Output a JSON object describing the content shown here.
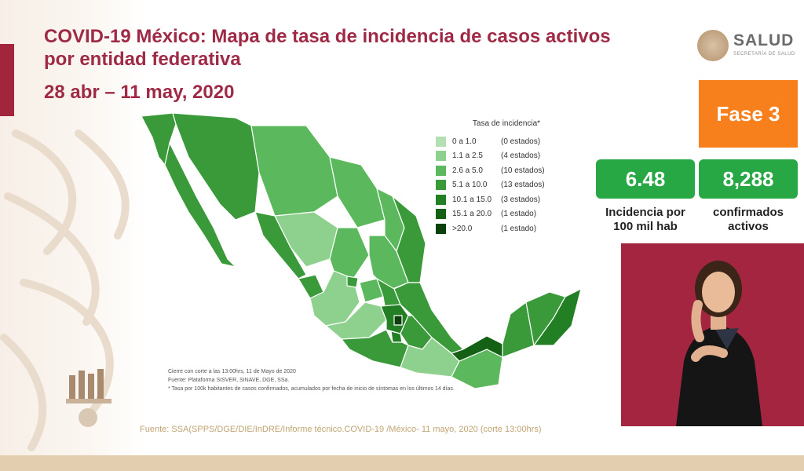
{
  "title": "COVID-19 México: Mapa de tasa de incidencia de casos activos por entidad federativa",
  "date_range": "28 abr – 11 may, 2020",
  "logo": {
    "name": "SALUD",
    "subtitle": "SECRETARÍA DE SALUD"
  },
  "phase": "Fase 3",
  "stats": [
    {
      "value": "6.48",
      "label": "Incidencia por 100 mil hab"
    },
    {
      "value": "8,288",
      "label": "confirmados activos"
    }
  ],
  "legend": {
    "title": "Tasa de incidencia*",
    "items": [
      {
        "range": "0 a 1.0",
        "count": "(0 estados)",
        "color": "#b2e0b2"
      },
      {
        "range": "1.1 a 2.5",
        "count": "(4 estados)",
        "color": "#8ed18e"
      },
      {
        "range": "2.6 a 5.0",
        "count": "(10 estados)",
        "color": "#5cb85c"
      },
      {
        "range": "5.1 a 10.0",
        "count": "(13 estados)",
        "color": "#3a9a3a"
      },
      {
        "range": "10.1 a 15.0",
        "count": "(3 estados)",
        "color": "#237f23"
      },
      {
        "range": "15.1 a 20.0",
        "count": "(1 estado)",
        "color": "#146014"
      },
      {
        "range": ">20.0",
        "count": "(1 estado)",
        "color": "#0b3f0b"
      }
    ]
  },
  "notes": [
    "Cierre con corte a las 13:00hrs, 11 de Mayo de 2020",
    "Fuente: Plataforma SISVER, SINAVE, DGE, SSa.",
    "* Tasa por 100k habitantes de casos confirmados, acumulados por fecha de inicio de síntomas en los últimos 14 días."
  ],
  "source": "Fuente: SSA(SPPS/DGE/DIE/InDRE/Informe técnico.COVID-19 /México- 11 mayo, 2020 (corte 13:00hrs)",
  "colors": {
    "title": "#9e2a45",
    "phase_bg": "#f7801d",
    "stat_bg": "#28a745",
    "video_bg": "#a4253f"
  }
}
